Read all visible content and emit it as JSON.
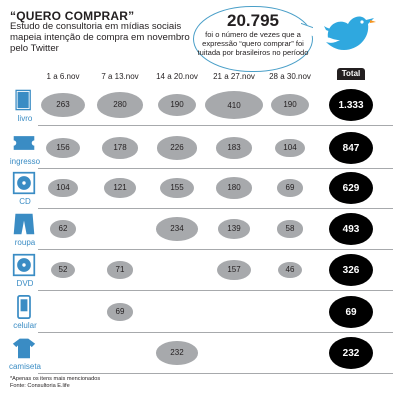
{
  "header": {
    "title": "“QUERO COMPRAR”",
    "subtitle": "Estudo de consultoria em mídias sociais mapeia intenção de compra em novembro pelo Twitter"
  },
  "callout": {
    "number": "20.795",
    "text": "foi o número de vezes que a expressão “quero comprar” foi tuitada por brasileiros no período"
  },
  "colors": {
    "accent": "#3a8cc4",
    "bubble_gray": "#a7a9ac",
    "total_black": "#000000"
  },
  "icons": [
    "book-icon",
    "ticket-icon",
    "cd-icon",
    "pants-icon",
    "dvd-icon",
    "phone-icon",
    "tshirt-icon",
    "twitter-bird-icon"
  ],
  "chart_data": {
    "type": "bubble-table",
    "columns": [
      "1 a 6.nov",
      "7 a 13.nov",
      "14 a 20.nov",
      "21 a 27.nov",
      "28 a 30.nov"
    ],
    "total_label": "Total",
    "rows": [
      {
        "label": "livro",
        "icon": "book-icon",
        "values": [
          263,
          280,
          190,
          410,
          190
        ],
        "total": "1.333"
      },
      {
        "label": "ingresso",
        "icon": "ticket-icon",
        "values": [
          156,
          178,
          226,
          183,
          104
        ],
        "total": "847"
      },
      {
        "label": "CD",
        "icon": "cd-icon",
        "values": [
          104,
          121,
          155,
          180,
          69
        ],
        "total": "629"
      },
      {
        "label": "roupa",
        "icon": "pants-icon",
        "values": [
          62,
          null,
          234,
          139,
          58
        ],
        "total": "493"
      },
      {
        "label": "DVD",
        "icon": "dvd-icon",
        "values": [
          52,
          71,
          null,
          157,
          46
        ],
        "total": "326"
      },
      {
        "label": "celular",
        "icon": "phone-icon",
        "values": [
          null,
          69,
          null,
          null,
          null
        ],
        "total": "69"
      },
      {
        "label": "camiseta",
        "icon": "tshirt-icon",
        "values": [
          null,
          null,
          232,
          null,
          null
        ],
        "total": "232"
      }
    ]
  },
  "footnote": {
    "note": "*Apenas os itens mais mencionados",
    "source": "Fonte: Consultoria E.life"
  }
}
